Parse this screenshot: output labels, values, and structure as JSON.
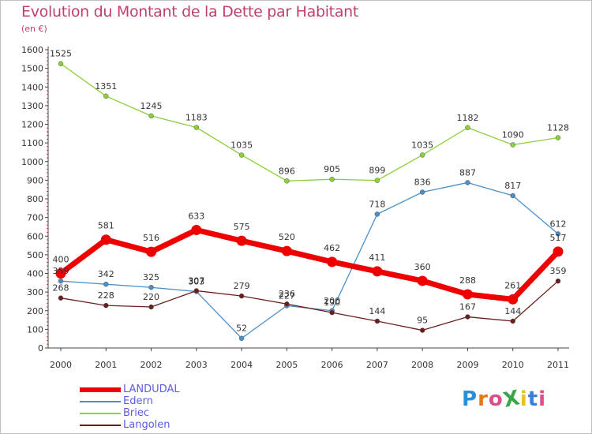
{
  "title": "Evolution du Montant de la Dette par Habitant",
  "unit": "(en €)",
  "logo": {
    "text": "ProXiti",
    "colors": [
      "#2a8fd6",
      "#e07a1a",
      "#d94f8a",
      "#3aa64a",
      "#e8c21a",
      "#3a7fd6",
      "#d94f8a"
    ]
  },
  "chart_data": {
    "type": "line",
    "title": "Evolution du Montant de la Dette par Habitant",
    "ylabel": "(en €)",
    "xlabel": "",
    "x": [
      "2000",
      "2001",
      "2002",
      "2003",
      "2004",
      "2005",
      "2006",
      "2007",
      "2008",
      "2009",
      "2010",
      "2011"
    ],
    "ylim": [
      0,
      1600
    ],
    "yticks": [
      0,
      100,
      200,
      300,
      400,
      500,
      600,
      700,
      800,
      900,
      1000,
      1100,
      1200,
      1300,
      1400,
      1500,
      1600
    ],
    "grid": false,
    "legend_position": "bottom-left",
    "series": [
      {
        "name": "LANDUDAL",
        "color": "#ee0000",
        "values": [
          400,
          581,
          516,
          633,
          575,
          520,
          462,
          411,
          360,
          288,
          261,
          517
        ]
      },
      {
        "name": "Edern",
        "color": "#4a90c8",
        "values": [
          359,
          342,
          325,
          303,
          52,
          227,
          200,
          718,
          836,
          887,
          817,
          612
        ]
      },
      {
        "name": "Briec",
        "color": "#8ccf3c",
        "values": [
          1525,
          1351,
          1245,
          1183,
          1035,
          896,
          905,
          899,
          1035,
          1182,
          1090,
          1128
        ]
      },
      {
        "name": "Langolen",
        "color": "#6b1e1e",
        "values": [
          268,
          228,
          220,
          307,
          279,
          236,
          190,
          144,
          95,
          167,
          144,
          359
        ]
      }
    ]
  }
}
